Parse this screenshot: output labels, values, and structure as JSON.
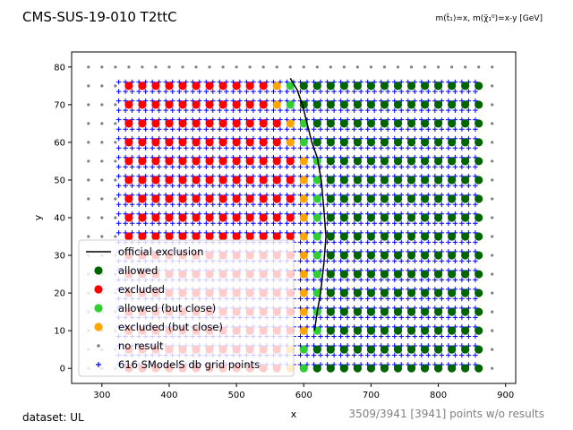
{
  "chart_data": {
    "type": "scatter",
    "title": "CMS-SUS-19-010 T2ttC",
    "subtitle": "m(t̃₁)=x, m(χ̃₁⁰)=x-y [GeV]",
    "xlabel": "x",
    "ylabel": "y",
    "xlim": [
      255,
      915
    ],
    "ylim": [
      -4,
      84
    ],
    "xticks": [
      300,
      400,
      500,
      600,
      700,
      800,
      900
    ],
    "yticks": [
      0,
      10,
      20,
      30,
      40,
      50,
      60,
      70,
      80
    ],
    "grid": false,
    "legend_position": "lower-left",
    "footer_left": "dataset: UL",
    "footer_right": "3509/3941 [3941] points w/o results",
    "colors": {
      "official_exclusion": "#000000",
      "allowed": "#006400",
      "excluded": "#ff0000",
      "allowed_close": "#32cd32",
      "excluded_close": "#ffa500",
      "no_result": "#808080",
      "grid_points": "#0000ff",
      "footer_right": "#808080"
    },
    "legend": [
      {
        "key": "official_exclusion",
        "label": "official exclusion",
        "marker": "line"
      },
      {
        "key": "allowed",
        "label": "allowed",
        "marker": "dot"
      },
      {
        "key": "excluded",
        "label": "excluded",
        "marker": "dot"
      },
      {
        "key": "allowed_close",
        "label": "allowed (but close)",
        "marker": "dot"
      },
      {
        "key": "excluded_close",
        "label": "excluded (but close)",
        "marker": "dot"
      },
      {
        "key": "no_result",
        "label": "no result",
        "marker": "small"
      },
      {
        "key": "grid_points",
        "label": "616 SModelS db grid points",
        "marker": "plus"
      }
    ],
    "official_exclusion": [
      [
        580,
        77
      ],
      [
        590,
        74
      ],
      [
        598,
        70
      ],
      [
        605,
        65
      ],
      [
        612,
        60
      ],
      [
        620,
        56
      ],
      [
        626,
        50
      ],
      [
        630,
        42
      ],
      [
        633,
        35
      ],
      [
        630,
        28
      ],
      [
        625,
        20
      ],
      [
        620,
        15
      ],
      [
        616,
        10
      ]
    ],
    "grid_points": {
      "x_start": 325,
      "x_end": 860,
      "x_step": 10,
      "y_start": 1,
      "y_end": 77,
      "y_step": 2.5
    },
    "no_result_grid": {
      "x_start": 280,
      "x_end": 895,
      "x_step": 20,
      "y_start": 0,
      "y_end": 80,
      "y_step": 5
    },
    "result_grid": {
      "x_start": 340,
      "x_end": 860,
      "x_step": 20,
      "y_start": 0,
      "y_end": 75,
      "y_step": 5
    },
    "classification": {
      "boundary": [
        [
          0,
          600
        ],
        [
          5,
          600
        ],
        [
          10,
          610
        ],
        [
          15,
          610
        ],
        [
          20,
          610
        ],
        [
          25,
          615
        ],
        [
          30,
          615
        ],
        [
          35,
          620
        ],
        [
          40,
          620
        ],
        [
          45,
          620
        ],
        [
          50,
          620
        ],
        [
          55,
          610
        ],
        [
          60,
          600
        ],
        [
          65,
          590
        ],
        [
          70,
          580
        ],
        [
          75,
          580
        ]
      ],
      "close_band": 20
    }
  }
}
